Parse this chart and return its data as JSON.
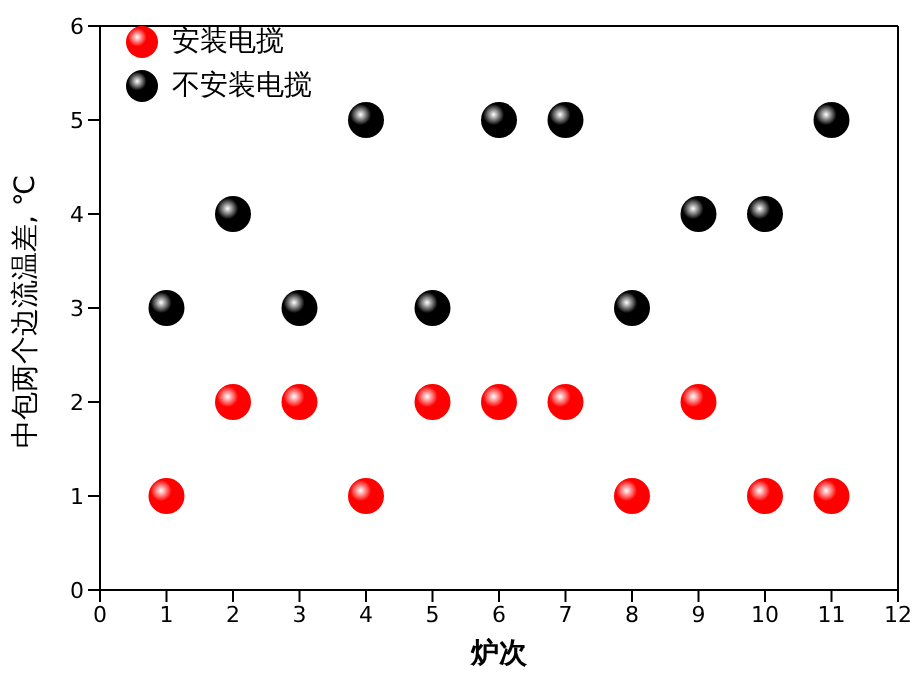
{
  "chart_data": {
    "type": "scatter",
    "xlabel": "炉次",
    "ylabel": "中包两个边流温差, ℃",
    "x": [
      1,
      2,
      3,
      4,
      5,
      6,
      7,
      8,
      9,
      10,
      11
    ],
    "series": [
      {
        "name": "安装电搅",
        "color": "#ff0000",
        "values": [
          1,
          2,
          2,
          1,
          2,
          2,
          2,
          1,
          2,
          1,
          1
        ]
      },
      {
        "name": "不安装电搅",
        "color": "#000000",
        "values": [
          3,
          4,
          3,
          5,
          3,
          5,
          5,
          3,
          4,
          4,
          5
        ]
      }
    ],
    "xlim": [
      0,
      12
    ],
    "xticks": [
      0,
      1,
      2,
      3,
      4,
      5,
      6,
      7,
      8,
      9,
      10,
      11,
      12
    ],
    "ylim": [
      0,
      6
    ],
    "yticks": [
      0,
      1,
      2,
      3,
      4,
      5,
      6
    ],
    "grid": false,
    "legend": "top left",
    "marker": "circle"
  }
}
